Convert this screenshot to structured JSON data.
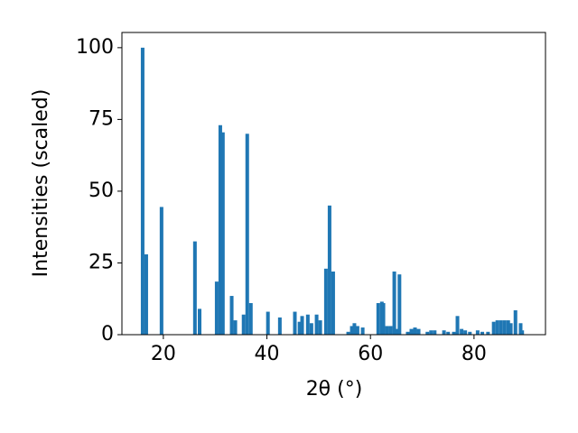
{
  "chart_data": {
    "type": "bar",
    "xlabel": "2θ (°)",
    "ylabel": "Intensities (scaled)",
    "color": "#1f77b4",
    "x": [
      16.0,
      16.7,
      19.65,
      26.1,
      27.0,
      30.3,
      31.0,
      31.5,
      33.2,
      33.9,
      35.5,
      36.2,
      36.9,
      40.2,
      42.5,
      45.4,
      46.3,
      46.8,
      47.9,
      48.6,
      49.6,
      50.3,
      51.4,
      52.1,
      52.8,
      55.7,
      56.4,
      56.9,
      57.5,
      58.5,
      61.5,
      62.2,
      62.5,
      63.2,
      63.9,
      64.6,
      65.1,
      65.6,
      67.2,
      67.9,
      68.6,
      69.3,
      71.0,
      71.7,
      72.4,
      74.2,
      75.0,
      76.1,
      76.8,
      77.6,
      78.3,
      79.2,
      80.7,
      81.6,
      82.7,
      83.8,
      84.5,
      85.2,
      85.9,
      86.6,
      87.1,
      88.0,
      89.0,
      89.3
    ],
    "values": [
      100,
      28,
      44.5,
      32.5,
      9,
      18.5,
      73,
      70.5,
      13.5,
      5,
      7,
      70,
      11,
      8,
      6,
      8,
      4.5,
      6.5,
      7,
      4,
      7,
      5,
      23,
      45,
      22,
      1,
      3,
      4,
      3,
      2.5,
      11,
      11.5,
      11,
      3,
      3,
      22,
      2,
      21,
      1,
      2,
      2.5,
      2,
      1,
      1.5,
      1.5,
      1.5,
      1,
      1,
      6.5,
      2,
      1.5,
      1,
      1.5,
      1,
      1,
      4.5,
      5,
      5,
      5,
      5,
      4,
      8.5,
      4,
      1.5
    ],
    "xlim": [
      12.0,
      93.8
    ],
    "ylim": [
      0,
      105.3
    ],
    "xticks": [
      20,
      40,
      60,
      80
    ],
    "yticks": [
      0,
      25,
      50,
      75,
      100
    ]
  }
}
